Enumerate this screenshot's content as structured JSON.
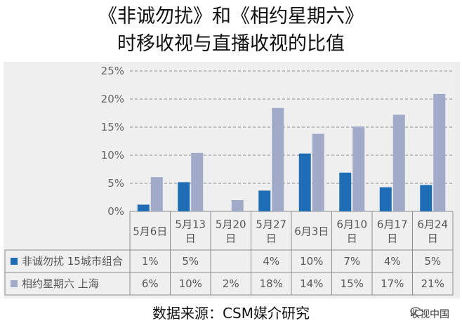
{
  "title_line1": "《非诚勿扰》和《相约星期六》",
  "title_line2": "时移收视与直播收视的比值",
  "source": "数据来源：CSM媒介研究",
  "watermark": "收视中国",
  "chart_data": {
    "type": "bar",
    "categories": [
      "5月6日",
      "5月13日",
      "5月20日",
      "5月27日",
      "6月3日",
      "6月10日",
      "6月17日",
      "6月24日"
    ],
    "category_lines": [
      [
        "5月6日"
      ],
      [
        "5月13",
        "日"
      ],
      [
        "5月20",
        "日"
      ],
      [
        "5月27",
        "日"
      ],
      [
        "6月3日"
      ],
      [
        "6月10",
        "日"
      ],
      [
        "6月17",
        "日"
      ],
      [
        "6月24",
        "日"
      ]
    ],
    "series": [
      {
        "name": "非诚勿扰 15城市组合",
        "values": [
          1.2,
          5.2,
          null,
          3.7,
          10.3,
          6.9,
          4.3,
          4.7
        ],
        "labels": [
          "1%",
          "5%",
          "",
          "4%",
          "10%",
          "7%",
          "4%",
          "5%"
        ],
        "color": "#1f6db5"
      },
      {
        "name": "相约星期六 上海",
        "values": [
          6.1,
          10.4,
          2.0,
          18.4,
          13.8,
          15.1,
          17.2,
          20.9
        ],
        "labels": [
          "6%",
          "10%",
          "2%",
          "18%",
          "14%",
          "15%",
          "17%",
          "21%"
        ],
        "color": "#a2aac9"
      }
    ],
    "yticks": [
      "0%",
      "5%",
      "10%",
      "15%",
      "20%",
      "25%"
    ],
    "ylim": [
      0,
      25
    ],
    "grid": true
  }
}
